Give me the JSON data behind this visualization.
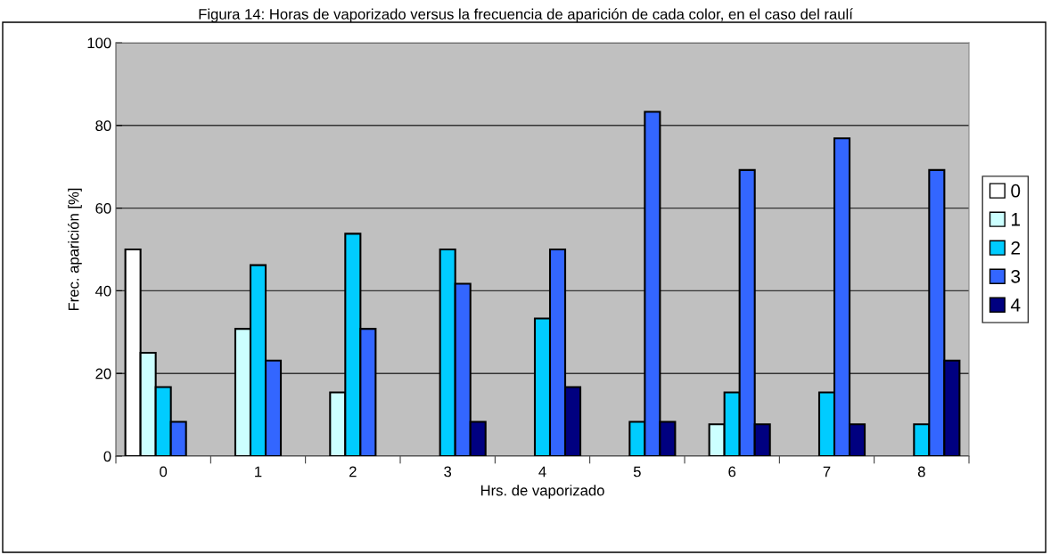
{
  "chart_data": {
    "type": "bar",
    "title": "Figura 14: Horas de vaporizado versus la frecuencia de aparición de cada color, en el caso del raulí",
    "xlabel": "Hrs. de vaporizado",
    "ylabel": "Frec. aparición [%]",
    "categories": [
      "0",
      "1",
      "2",
      "3",
      "4",
      "5",
      "6",
      "7",
      "8"
    ],
    "series": [
      {
        "name": "0",
        "color": "#ffffff",
        "values": [
          50,
          null,
          null,
          null,
          null,
          null,
          null,
          null,
          null
        ]
      },
      {
        "name": "1",
        "color": "#ccffff",
        "values": [
          25,
          30.8,
          15.4,
          null,
          null,
          null,
          7.7,
          null,
          null
        ]
      },
      {
        "name": "2",
        "color": "#00ccff",
        "values": [
          16.7,
          46.2,
          53.8,
          50,
          33.3,
          8.3,
          15.4,
          15.4,
          7.7
        ]
      },
      {
        "name": "3",
        "color": "#3366ff",
        "values": [
          8.3,
          23.1,
          30.8,
          41.7,
          50,
          83.3,
          69.2,
          76.9,
          69.2
        ]
      },
      {
        "name": "4",
        "color": "#000080",
        "values": [
          null,
          null,
          null,
          8.3,
          16.7,
          8.3,
          7.7,
          7.7,
          23.1
        ]
      }
    ],
    "ylim": [
      0,
      100
    ],
    "yticks": [
      0,
      20,
      40,
      60,
      80,
      100
    ],
    "grid": "y",
    "legend": "right"
  }
}
